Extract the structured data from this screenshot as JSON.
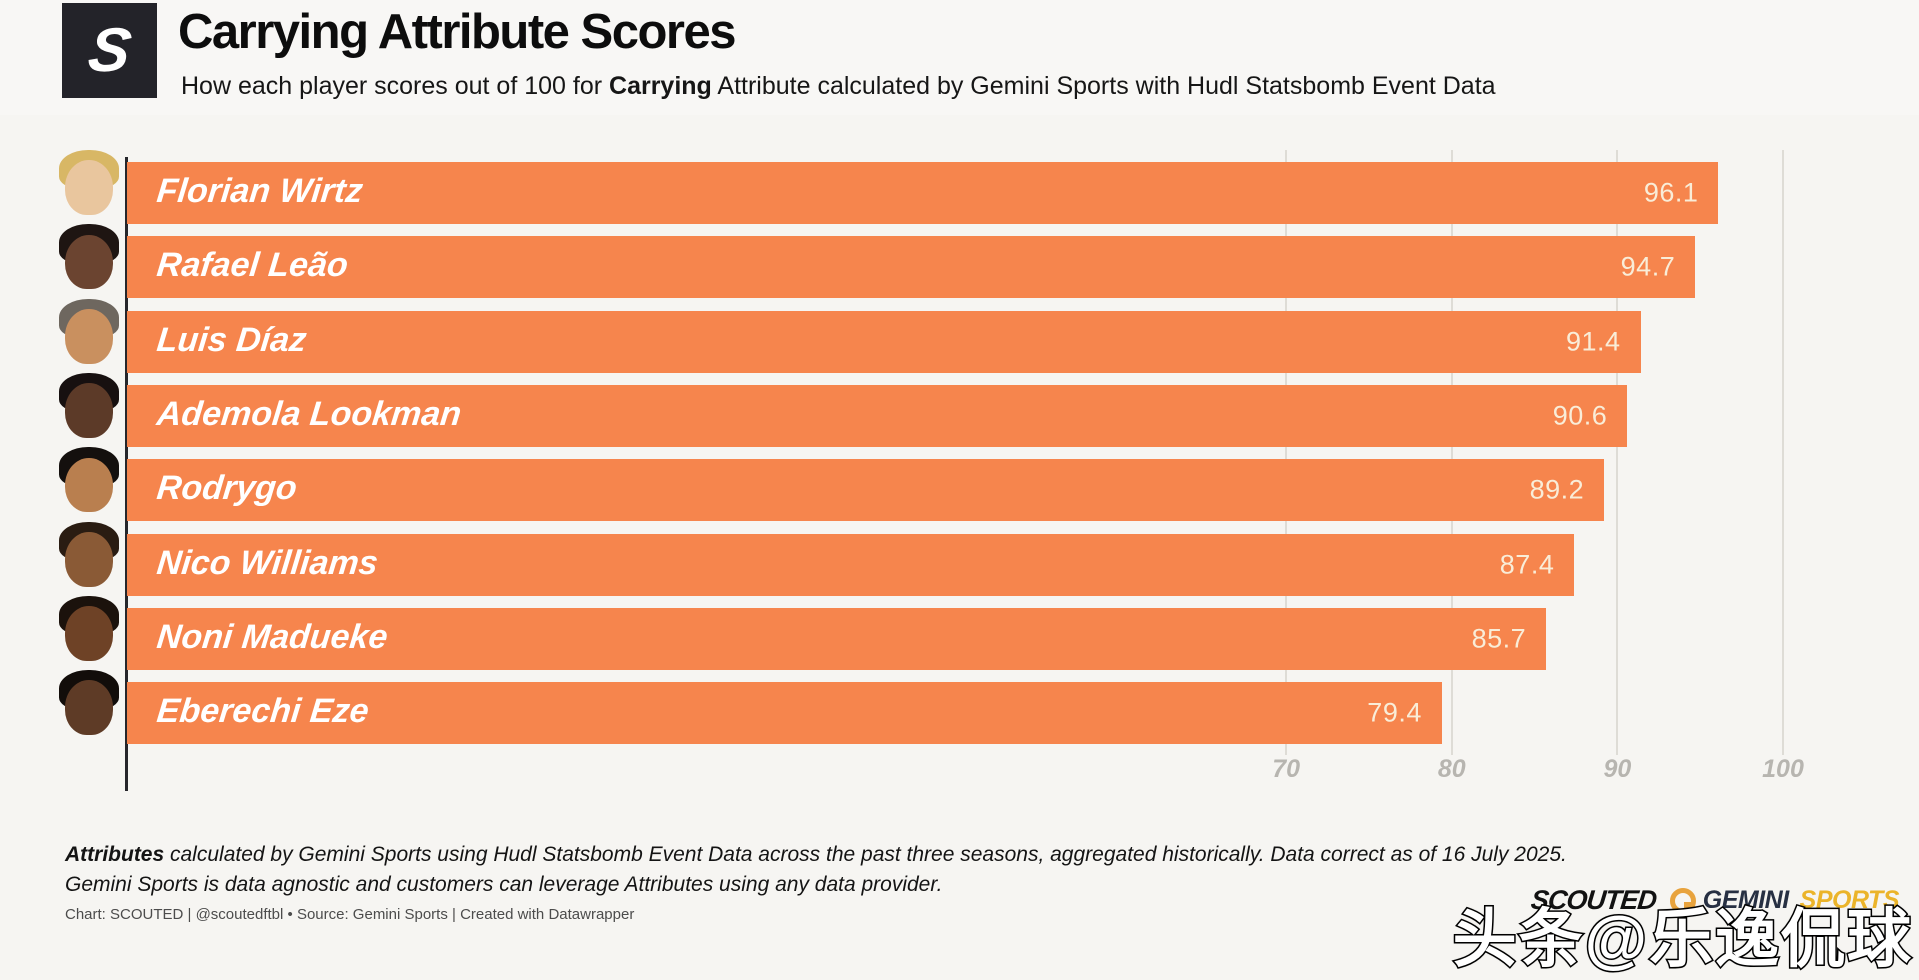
{
  "header": {
    "logo_letter": "S",
    "title": "Carrying Attribute Scores",
    "subtitle_prefix": "How each player scores out of 100 for ",
    "subtitle_bold": "Carrying",
    "subtitle_suffix": " Attribute calculated by Gemini Sports with Hudl Statsbomb Event Data"
  },
  "chart_data": {
    "type": "bar",
    "orientation": "horizontal",
    "title": "Carrying Attribute Scores",
    "categories": [
      "Florian Wirtz",
      "Rafael Leão",
      "Luis Díaz",
      "Ademola Lookman",
      "Rodrygo",
      "Nico Williams",
      "Noni Madueke",
      "Eberechi Eze"
    ],
    "values": [
      96.1,
      94.7,
      91.4,
      90.6,
      89.2,
      87.4,
      85.7,
      79.4
    ],
    "xlabel": "",
    "ylabel": "",
    "xlim": [
      0,
      100
    ],
    "xticks": [
      70,
      80,
      90,
      100
    ],
    "grid": true,
    "legend": false,
    "bar_color": "#F6854D",
    "value_label_color": "#F9EDD8",
    "name_label_color": "#FFFFFF"
  },
  "players": [
    {
      "name": "Florian Wirtz",
      "value": "96.1",
      "skin": "#E9C69E",
      "hair": "#D8B765"
    },
    {
      "name": "Rafael Leão",
      "value": "94.7",
      "skin": "#6B4430",
      "hair": "#1E1512"
    },
    {
      "name": "Luis Díaz",
      "value": "91.4",
      "skin": "#C9905F",
      "hair": "#6E675F"
    },
    {
      "name": "Ademola Lookman",
      "value": "90.6",
      "skin": "#5C3A28",
      "hair": "#171010"
    },
    {
      "name": "Rodrygo",
      "value": "89.2",
      "skin": "#B97F4F",
      "hair": "#14100E"
    },
    {
      "name": "Nico Williams",
      "value": "87.4",
      "skin": "#8A5A36",
      "hair": "#2A1C12"
    },
    {
      "name": "Noni Madueke",
      "value": "85.7",
      "skin": "#6E4226",
      "hair": "#1B120C"
    },
    {
      "name": "Eberechi Eze",
      "value": "79.4",
      "skin": "#5E3B26",
      "hair": "#120D0A"
    }
  ],
  "axis": {
    "tick_labels": [
      "70",
      "80",
      "90",
      "100"
    ],
    "tick_values": [
      70,
      80,
      90,
      100
    ]
  },
  "footer": {
    "note_line1_bold": "Attributes",
    "note_line1_rest": " calculated by Gemini Sports using Hudl Statsbomb Event Data across the past three seasons, aggregated historically. Data correct as of 16 July 2025.",
    "note_line2": "Gemini Sports is data agnostic and customers can leverage Attributes using any data provider.",
    "credit": "Chart: SCOUTED | @scoutedftbl • Source: Gemini Sports | Created with Datawrapper"
  },
  "brand": {
    "scouted": "SCOUTED",
    "gemini": "GEMINI",
    "sports": "SPORTS",
    "gemini_navy": "#273043",
    "sports_gold": "#EBB42A"
  },
  "watermark": "头条@乐逸侃球"
}
